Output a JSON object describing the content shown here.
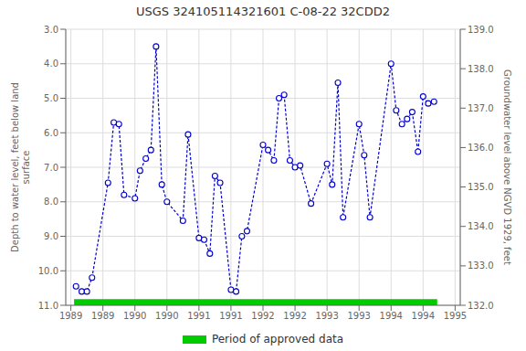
{
  "chart_data": {
    "type": "line",
    "title": "USGS 324105114321601 C-08-22 32CDD2",
    "y_label": "Depth to water level, feet below land\nsurface",
    "y2_label": "Groundwater level above NGVD 1929, feet",
    "x": [
      1989.08,
      1989.17,
      1989.25,
      1989.33,
      1989.58,
      1989.67,
      1989.75,
      1989.83,
      1990.0,
      1990.08,
      1990.17,
      1990.25,
      1990.33,
      1990.42,
      1990.5,
      1990.75,
      1990.83,
      1991.0,
      1991.08,
      1991.17,
      1991.25,
      1991.33,
      1991.5,
      1991.58,
      1991.67,
      1991.75,
      1992.0,
      1992.08,
      1992.17,
      1992.25,
      1992.33,
      1992.42,
      1992.5,
      1992.58,
      1992.75,
      1993.0,
      1993.08,
      1993.17,
      1993.25,
      1993.5,
      1993.58,
      1993.67,
      1994.0,
      1994.08,
      1994.17,
      1994.25,
      1994.33,
      1994.42,
      1994.5,
      1994.58,
      1994.67
    ],
    "values": [
      10.45,
      10.6,
      10.6,
      10.2,
      7.45,
      5.7,
      5.75,
      7.8,
      7.9,
      7.1,
      6.75,
      6.5,
      3.5,
      7.5,
      8.0,
      8.55,
      6.05,
      9.05,
      9.1,
      9.5,
      7.25,
      7.45,
      10.55,
      10.6,
      9.0,
      8.85,
      6.35,
      6.5,
      6.8,
      5.0,
      4.9,
      6.8,
      7.0,
      6.95,
      8.05,
      6.9,
      7.5,
      4.55,
      8.45,
      5.75,
      6.65,
      8.45,
      4.0,
      5.35,
      5.75,
      5.6,
      5.4,
      6.55,
      4.95,
      5.15,
      5.1
    ],
    "color": "#0000cc",
    "marker": "circle",
    "line_style": "dashed",
    "xlim": [
      1988.92,
      1995.08
    ],
    "xticks": [
      1989.0,
      {
        "value": 1989.5,
        "label": "1989"
      },
      1990.0,
      {
        "value": 1990.5,
        "label": "1990"
      },
      1991.0,
      {
        "value": 1991.5,
        "label": "1991"
      },
      1992.0,
      {
        "value": 1992.5,
        "label": "1992"
      },
      1993.0,
      {
        "value": 1993.5,
        "label": "1993"
      },
      1994.0,
      {
        "value": 1994.5,
        "label": "1994"
      },
      1995.0
    ],
    "ylim": [
      11.0,
      3.0
    ],
    "yticks": [
      {
        "value": 3.0,
        "label": "3.0"
      },
      {
        "value": 4.0,
        "label": "4.0"
      },
      {
        "value": 5.0,
        "label": "5.0"
      },
      {
        "value": 6.0,
        "label": "6.0"
      },
      {
        "value": 7.0,
        "label": "7.0"
      },
      {
        "value": 8.0,
        "label": "8.0"
      },
      {
        "value": 9.0,
        "label": "9.0"
      },
      {
        "value": 10.0,
        "label": "10.0"
      },
      {
        "value": 11.0,
        "label": "11.0"
      }
    ],
    "y2lim": [
      132.0,
      139.0
    ],
    "y2ticks": [
      {
        "value": 132.0,
        "label": "132.0"
      },
      {
        "value": 133.0,
        "label": "133.0"
      },
      {
        "value": 134.0,
        "label": "134.0"
      },
      {
        "value": 135.0,
        "label": "135.0"
      },
      {
        "value": 136.0,
        "label": "136.0"
      },
      {
        "value": 137.0,
        "label": "137.0"
      },
      {
        "value": 138.0,
        "label": "138.0"
      },
      {
        "value": 139.0,
        "label": "139.0"
      }
    ],
    "grid": true,
    "legend": "bottom",
    "approved_period": {
      "xmin": 1989.05,
      "xmax": 1994.72,
      "ymin": 10.82,
      "ymax": 11.0,
      "color": "#00cc00",
      "label": "Period of approved data"
    }
  }
}
